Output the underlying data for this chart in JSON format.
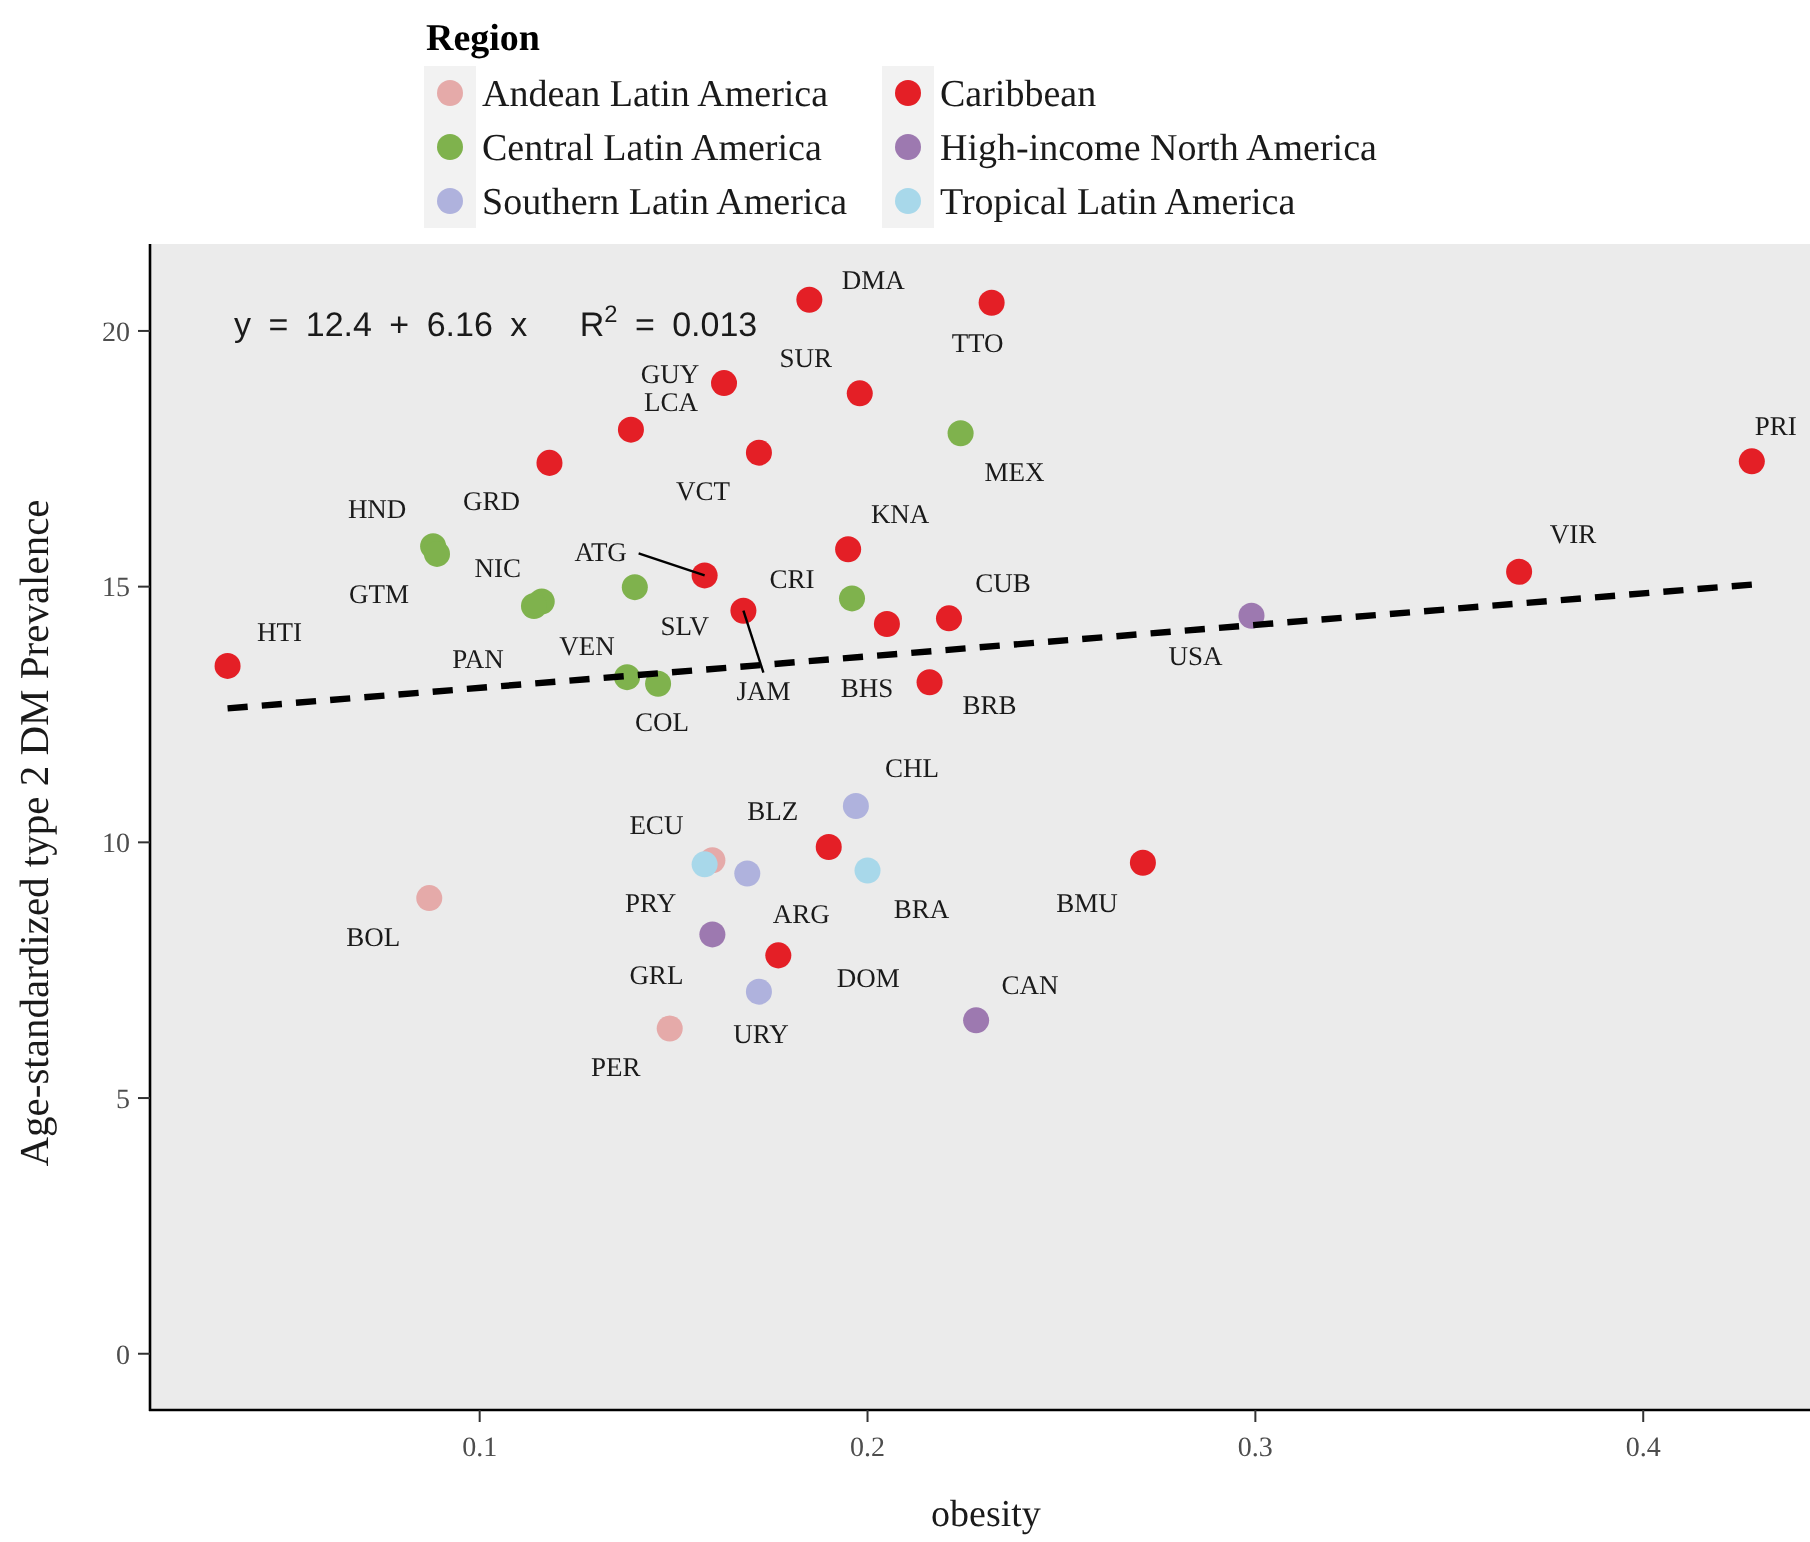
{
  "chart_data": {
    "type": "scatter",
    "xlabel": "obesity",
    "ylabel": "Age-standardized type 2 DM Prevalence",
    "legend_title": "Region",
    "legend": "top",
    "marker": "circle",
    "grid": false,
    "xlim": [
      0.015,
      0.443
    ],
    "ylim": [
      -1.1,
      21.7
    ],
    "xticks": [
      0.1,
      0.2,
      0.3,
      0.4
    ],
    "yticks": [
      0,
      5,
      10,
      15,
      20
    ],
    "series": [
      {
        "name": "Andean Latin America",
        "color": "#e5aaa9",
        "x": [
          0.087,
          0.16,
          0.149
        ],
        "values": [
          8.91,
          9.65,
          6.36
        ]
      },
      {
        "name": "Caribbean",
        "color": "#e41f26",
        "x": [
          0.035,
          0.118,
          0.139,
          0.158,
          0.163,
          0.172,
          0.168,
          0.185,
          0.198,
          0.195,
          0.205,
          0.221,
          0.216,
          0.232,
          0.368,
          0.428,
          0.19,
          0.177,
          0.271
        ],
        "values": [
          13.45,
          17.42,
          18.07,
          15.22,
          18.98,
          17.62,
          14.53,
          20.61,
          18.78,
          15.73,
          14.27,
          14.38,
          13.13,
          20.55,
          15.29,
          17.45,
          9.91,
          7.79,
          9.6
        ]
      },
      {
        "name": "Central Latin America",
        "color": "#7fb24d",
        "x": [
          0.088,
          0.089,
          0.116,
          0.114,
          0.14,
          0.138,
          0.146,
          0.196,
          0.224
        ],
        "values": [
          15.79,
          15.64,
          14.71,
          14.62,
          14.99,
          13.23,
          13.1,
          14.77,
          18.0
        ]
      },
      {
        "name": "High-income North America",
        "color": "#9d79b0",
        "x": [
          0.299,
          0.228,
          0.16
        ],
        "values": [
          14.43,
          6.52,
          8.2
        ]
      },
      {
        "name": "Southern Latin America",
        "color": "#afb2dd",
        "x": [
          0.169,
          0.197,
          0.172
        ],
        "values": [
          9.39,
          10.71,
          7.08
        ]
      },
      {
        "name": "Tropical Latin America",
        "color": "#a8d8ea",
        "x": [
          0.158,
          0.2
        ],
        "values": [
          9.57,
          9.45
        ]
      },
      {
        "type": "line",
        "color": "#000000",
        "line_style": "dashed",
        "marker": "none",
        "x": [
          0.035,
          0.428
        ],
        "values": [
          12.62,
          15.04
        ]
      }
    ],
    "annotations": [
      "y = 12.4 + 6.16 x   R$^{2}$ = 0.013",
      {
        "text": "BOL",
        "x": 0.087,
        "y": 8.91
      },
      {
        "text": "ECU",
        "x": 0.16,
        "y": 9.65
      },
      {
        "text": "PER",
        "x": 0.149,
        "y": 6.36
      },
      {
        "text": "HTI",
        "x": 0.035,
        "y": 13.45
      },
      {
        "text": "GRD",
        "x": 0.118,
        "y": 17.42
      },
      {
        "text": "LCA",
        "x": 0.139,
        "y": 18.07
      },
      {
        "text": "ATG",
        "x": 0.158,
        "y": 15.22
      },
      {
        "text": "GUY",
        "x": 0.163,
        "y": 18.98
      },
      {
        "text": "VCT",
        "x": 0.172,
        "y": 17.62
      },
      {
        "text": "JAM",
        "x": 0.168,
        "y": 14.53
      },
      {
        "text": "DMA",
        "x": 0.185,
        "y": 20.61
      },
      {
        "text": "SUR",
        "x": 0.198,
        "y": 18.78
      },
      {
        "text": "KNA",
        "x": 0.195,
        "y": 15.73
      },
      {
        "text": "BHS",
        "x": 0.205,
        "y": 14.27
      },
      {
        "text": "CUB",
        "x": 0.221,
        "y": 14.38
      },
      {
        "text": "BRB",
        "x": 0.216,
        "y": 13.13
      },
      {
        "text": "TTO",
        "x": 0.232,
        "y": 20.55
      },
      {
        "text": "VIR",
        "x": 0.368,
        "y": 15.29
      },
      {
        "text": "PRI",
        "x": 0.428,
        "y": 17.45
      },
      {
        "text": "BLZ",
        "x": 0.19,
        "y": 9.91
      },
      {
        "text": "DOM",
        "x": 0.177,
        "y": 7.79
      },
      {
        "text": "BMU",
        "x": 0.271,
        "y": 9.6
      },
      {
        "text": "HND",
        "x": 0.088,
        "y": 15.79
      },
      {
        "text": "GTM",
        "x": 0.089,
        "y": 15.64
      },
      {
        "text": "NIC",
        "x": 0.116,
        "y": 14.71
      },
      {
        "text": "PAN",
        "x": 0.114,
        "y": 14.62
      },
      {
        "text": "SLV",
        "x": 0.14,
        "y": 14.99
      },
      {
        "text": "VEN",
        "x": 0.138,
        "y": 13.23
      },
      {
        "text": "COL",
        "x": 0.146,
        "y": 13.1
      },
      {
        "text": "CRI",
        "x": 0.196,
        "y": 14.77
      },
      {
        "text": "MEX",
        "x": 0.224,
        "y": 18.0
      },
      {
        "text": "USA",
        "x": 0.299,
        "y": 14.43
      },
      {
        "text": "CAN",
        "x": 0.228,
        "y": 6.52
      },
      {
        "text": "GRL",
        "x": 0.16,
        "y": 8.2
      },
      {
        "text": "ARG",
        "x": 0.169,
        "y": 9.39
      },
      {
        "text": "CHL",
        "x": 0.197,
        "y": 10.71
      },
      {
        "text": "URY",
        "x": 0.172,
        "y": 7.08
      },
      {
        "text": "PRY",
        "x": 0.158,
        "y": 9.57
      },
      {
        "text": "BRA",
        "x": 0.2,
        "y": 9.45
      }
    ]
  }
}
